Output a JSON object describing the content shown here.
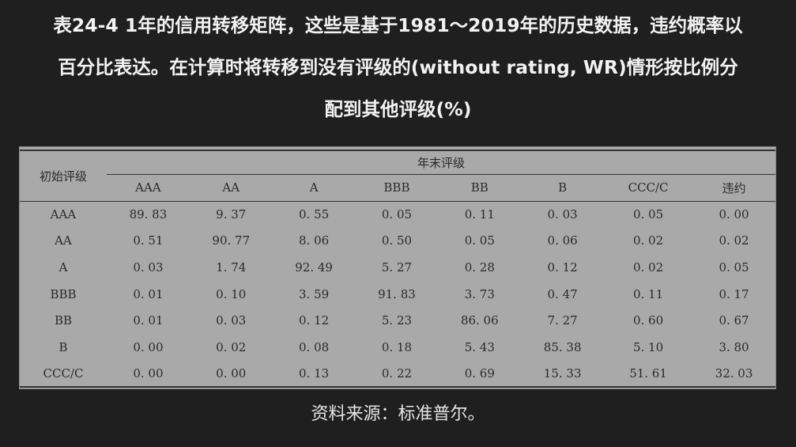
{
  "title": {
    "line1": "表24-4 1年的信用转移矩阵，这些是基于1981～2019年的历史数据，违约概率以",
    "line2": "百分比表达。在计算时将转移到没有评级的(without rating, WR)情形按比例分",
    "line3": "配到其他评级(%)"
  },
  "table": {
    "row_header_label": "初始评级",
    "group_header_label": "年末评级",
    "columns": [
      "AAA",
      "AA",
      "A",
      "BBB",
      "BB",
      "B",
      "CCC/C",
      "违约"
    ],
    "rows": [
      {
        "rating": "AAA",
        "values": [
          "89. 83",
          "9. 37",
          "0. 55",
          "0. 05",
          "0. 11",
          "0. 03",
          "0. 05",
          "0. 00"
        ]
      },
      {
        "rating": "AA",
        "values": [
          "0. 51",
          "90. 77",
          "8. 06",
          "0. 50",
          "0. 05",
          "0. 06",
          "0. 02",
          "0. 02"
        ]
      },
      {
        "rating": "A",
        "values": [
          "0. 03",
          "1. 74",
          "92. 49",
          "5. 27",
          "0. 28",
          "0. 12",
          "0. 02",
          "0. 05"
        ]
      },
      {
        "rating": "BBB",
        "values": [
          "0. 01",
          "0. 10",
          "3. 59",
          "91. 83",
          "3. 73",
          "0. 47",
          "0. 11",
          "0. 17"
        ]
      },
      {
        "rating": "BB",
        "values": [
          "0. 01",
          "0. 03",
          "0. 12",
          "5. 23",
          "86. 06",
          "7. 27",
          "0. 60",
          "0. 67"
        ]
      },
      {
        "rating": "B",
        "values": [
          "0. 00",
          "0. 02",
          "0. 08",
          "0. 18",
          "5. 43",
          "85. 38",
          "5. 10",
          "3. 80"
        ]
      },
      {
        "rating": "CCC/C",
        "values": [
          "0. 00",
          "0. 00",
          "0. 13",
          "0. 22",
          "0. 69",
          "15. 33",
          "51. 61",
          "32. 03"
        ]
      }
    ]
  },
  "caption": "资料来源：标准普尔。"
}
